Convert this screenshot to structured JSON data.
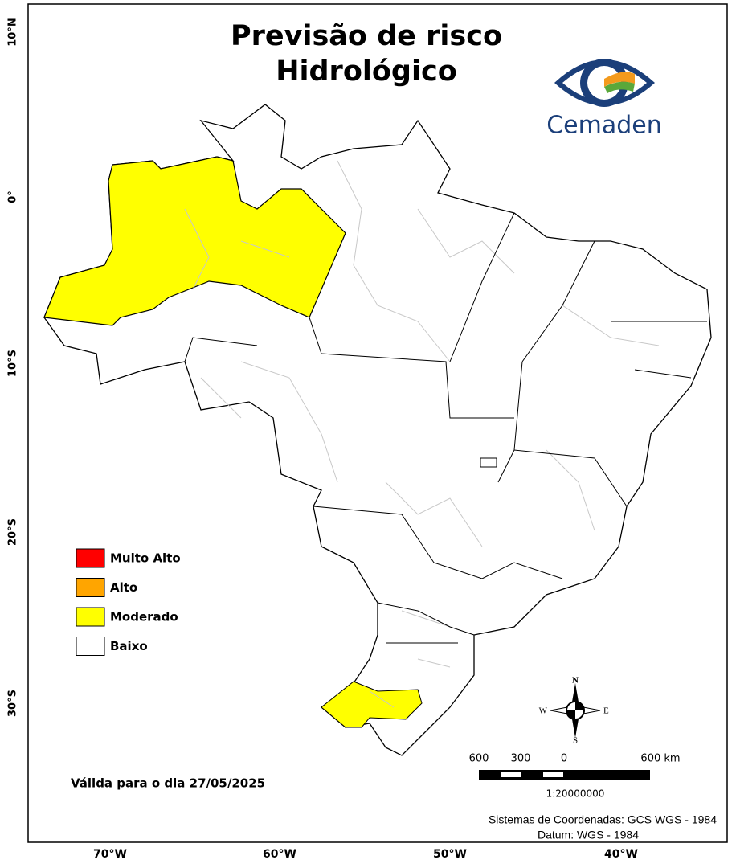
{
  "title": [
    "Previsão de risco",
    "Hidrológico"
  ],
  "logo": "Cemaden",
  "legend": [
    {
      "label": "Muito Alto",
      "color": "#ff0000"
    },
    {
      "label": "Alto",
      "color": "#ffa500"
    },
    {
      "label": "Moderado",
      "color": "#ffff00"
    },
    {
      "label": "Baixo",
      "color": "#ffffff"
    }
  ],
  "validity": "Válida para o dia 27/05/2025",
  "scale": {
    "labels": [
      "600",
      "300",
      "0",
      "600 km"
    ],
    "ratio": "1:20000000"
  },
  "compass": {
    "n": "N",
    "e": "E",
    "s": "S",
    "w": "W"
  },
  "credits": [
    "Sistemas de Coordenadas: GCS WGS - 1984",
    "Datum: WGS - 1984"
  ],
  "lat_labels": [
    "10°N",
    "0°",
    "10°S",
    "20°S",
    "30°S"
  ],
  "lon_labels": [
    "70°W",
    "60°W",
    "50°W",
    "40°W"
  ]
}
